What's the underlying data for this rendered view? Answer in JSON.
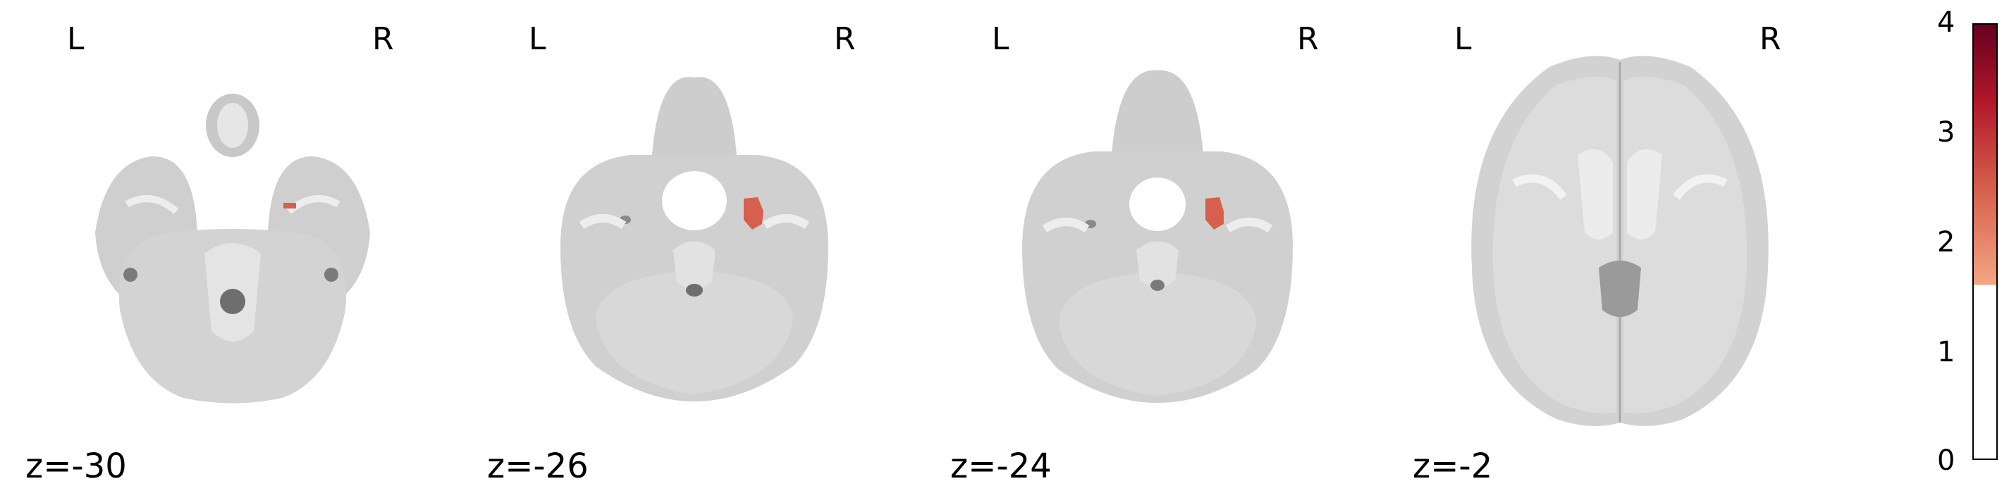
{
  "panels": [
    {
      "slice_label": "z=-30",
      "left_label": "L",
      "right_label": "R",
      "blob": "small"
    },
    {
      "slice_label": "z=-26",
      "left_label": "L",
      "right_label": "R",
      "blob": "medium"
    },
    {
      "slice_label": "z=-24",
      "left_label": "L",
      "right_label": "R",
      "blob": "medium"
    },
    {
      "slice_label": "z=-2",
      "left_label": "L",
      "right_label": "R",
      "blob": "none"
    }
  ],
  "colorbar": {
    "ticks": [
      "0",
      "1",
      "2",
      "3",
      "4"
    ],
    "threshold": 1.6,
    "max": 4,
    "colors": [
      "#f4a582",
      "#d6604d",
      "#b2182b",
      "#67001f"
    ]
  }
}
